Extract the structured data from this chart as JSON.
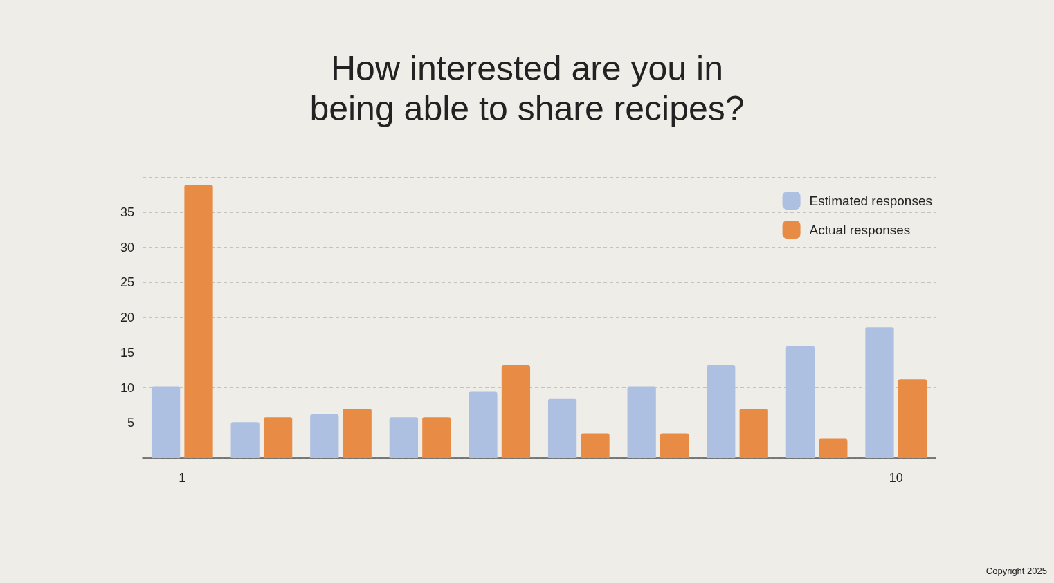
{
  "chart_data": {
    "type": "bar",
    "title": "How interested are you in being able to share recipes?",
    "categories": [
      "1",
      null,
      null,
      null,
      null,
      null,
      null,
      null,
      null,
      "10"
    ],
    "series": [
      {
        "name": "Estimated responses",
        "color": "#aec0e2",
        "values": [
          10.2,
          5.1,
          6.2,
          5.8,
          9.4,
          8.4,
          10.2,
          13.2,
          15.9,
          18.6
        ]
      },
      {
        "name": "Actual responses",
        "color": "#e88b44",
        "values": [
          38.9,
          5.8,
          7.0,
          5.8,
          13.2,
          3.5,
          3.5,
          7.0,
          2.7,
          11.2
        ]
      }
    ],
    "ylim": [
      0,
      40
    ],
    "yticks": [
      {
        "value": 0,
        "label": null
      },
      5,
      10,
      15,
      20,
      25,
      30,
      35,
      {
        "value": 40,
        "label": null
      }
    ],
    "grid": "y",
    "legend": "top right",
    "annotations": [
      "Copyright 2025"
    ]
  }
}
